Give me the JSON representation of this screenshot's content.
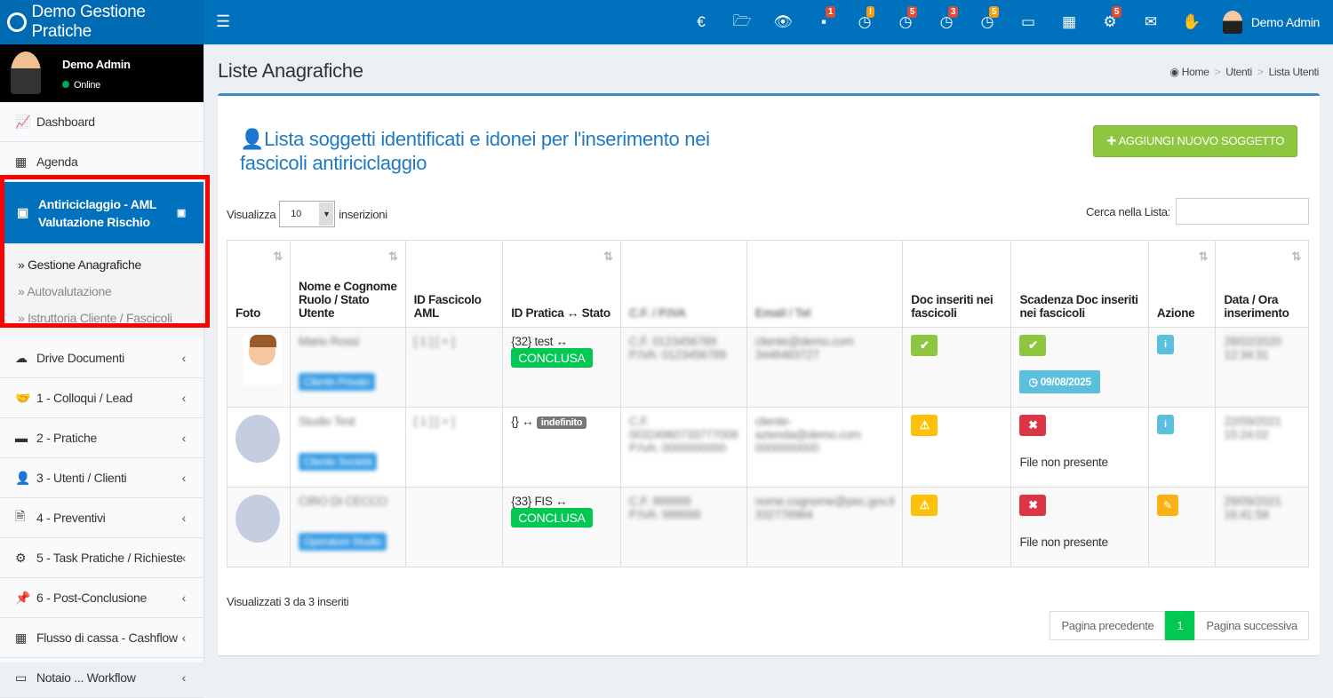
{
  "app": {
    "title": "Demo Gestione Pratiche",
    "user": "Demo Admin",
    "status": "Online"
  },
  "topnav": [
    {
      "icon": "euro-icon",
      "glyph": "€"
    },
    {
      "icon": "folder-open-icon",
      "glyph": "🗁"
    },
    {
      "icon": "eye-icon",
      "glyph": "👁"
    },
    {
      "icon": "inbox-icon",
      "glyph": "▪",
      "badge": "1",
      "badge_color": "#dd4b39"
    },
    {
      "icon": "clock-icon",
      "glyph": "◷",
      "badge": "!",
      "badge_color": "#f39c12"
    },
    {
      "icon": "clock-icon",
      "glyph": "◷",
      "badge": "5",
      "badge_color": "#dd4b39"
    },
    {
      "icon": "clock-icon",
      "glyph": "◷",
      "badge": "3",
      "badge_color": "#dd4b39"
    },
    {
      "icon": "clock-icon",
      "glyph": "◷",
      "badge": "5",
      "badge_color": "#f39c12"
    },
    {
      "icon": "calendar-icon",
      "glyph": "▭"
    },
    {
      "icon": "calendar-grid-icon",
      "glyph": "▦"
    },
    {
      "icon": "gears-icon",
      "glyph": "⚙",
      "badge": "5",
      "badge_color": "#dd4b39"
    },
    {
      "icon": "envelope-icon",
      "glyph": "✉"
    },
    {
      "icon": "hand-icon",
      "glyph": "✋"
    }
  ],
  "sidebar": {
    "items_top": [
      {
        "label": "Dashboard",
        "glyph": "📈"
      },
      {
        "label": "Agenda",
        "glyph": "▦"
      }
    ],
    "active": {
      "line1": "Antiriciclaggio - AML",
      "line2": "Valutazione Rischio"
    },
    "sub": [
      {
        "label": "Gestione Anagrafiche",
        "current": true
      },
      {
        "label": "Autovalutazione"
      },
      {
        "label": "Istruttoria Cliente / Fascicoli"
      }
    ],
    "items": [
      {
        "label": "Drive Documenti",
        "glyph": "☁"
      },
      {
        "label": "1 - Colloqui / Lead",
        "glyph": "🤝"
      },
      {
        "label": "2 - Pratiche",
        "glyph": "▬"
      },
      {
        "label": "3 - Utenti / Clienti",
        "glyph": "👤"
      },
      {
        "label": "4 - Preventivi",
        "glyph": "🗎"
      },
      {
        "label": "5 - Task Pratiche / Richieste",
        "glyph": "⚙"
      },
      {
        "label": "6 - Post-Conclusione",
        "glyph": "📌"
      },
      {
        "label": "Flusso di cassa - Cashflow",
        "glyph": "▦"
      },
      {
        "label": "Notaio ... Workflow",
        "glyph": "▭"
      }
    ]
  },
  "page": {
    "title": "Liste Anagrafiche",
    "breadcrumb": [
      "Home",
      "Utenti",
      "Lista Utenti"
    ]
  },
  "box": {
    "title": "Lista soggetti identificati e idonei per l'inserimento nei fascicoli antiriciclaggio",
    "add_button": "AGGIUNGI NUOVO SOGGETTO",
    "show_label": "Visualizza",
    "show_value": "10",
    "show_suffix": "inserizioni",
    "search_label": "Cerca nella Lista:",
    "search_value": ""
  },
  "table": {
    "headers": [
      "Foto",
      "Nome e Cognome Ruolo / Stato Utente",
      "ID Fascicolo AML",
      "ID Pratica ↔ Stato",
      "C.F. / P.IVA",
      "Email / Tel",
      "Doc inseriti nei fascicoli",
      "Scadenza Doc inseriti nei fascicoli",
      "Azione",
      "Data / Ora inserimento"
    ],
    "rows": [
      {
        "name": "Mario Rossi",
        "role": "Cliente Privato",
        "fascicolo": "[ 1 ] [ + ]",
        "pratica": "{32} test ↔",
        "stato": "CONCLUSA",
        "cf": "C.F. 0123456789",
        "piva": "P.IVA: 0123456789",
        "email": "cliente@demo.com",
        "tel": "3446483727",
        "doc": "ok",
        "scad": "ok",
        "scad_date": "09/08/2025",
        "azione": "info",
        "data": "28/02/2020",
        "ora": "12:34:31"
      },
      {
        "name": "Studio Test",
        "role": "Cliente Società",
        "fascicolo": "[ 1 ] [ + ]",
        "pratica": "{} ↔",
        "stato": "indefinito",
        "cf": "C.F. 00324960733777009",
        "piva": "P.IVA: 0000000000",
        "email": "cliente-azienda@demo.com",
        "tel": "0000000000",
        "doc": "warning",
        "scad": "missing",
        "scad_text": "File non presente",
        "azione": "info",
        "data": "22/09/2021",
        "ora": "15:24:02"
      },
      {
        "name": "CIRO DI CECCO",
        "role": "Operatore Studio",
        "fascicolo": "",
        "pratica": "{33} FIS ↔",
        "stato": "CONCLUSA",
        "cf": "C.F. 999999",
        "piva": "P.IVA: 999999",
        "email": "nome.cognome@pec.gov.it",
        "tel": "332778964",
        "doc": "warning",
        "scad": "missing",
        "scad_text": "File non presente",
        "azione": "edit",
        "data": "29/09/2021",
        "ora": "16:41:58"
      }
    ]
  },
  "footer": {
    "info": "Visualizzati 3 da 3 inseriti",
    "prev": "Pagina precedente",
    "page": "1",
    "next": "Pagina successiva"
  }
}
